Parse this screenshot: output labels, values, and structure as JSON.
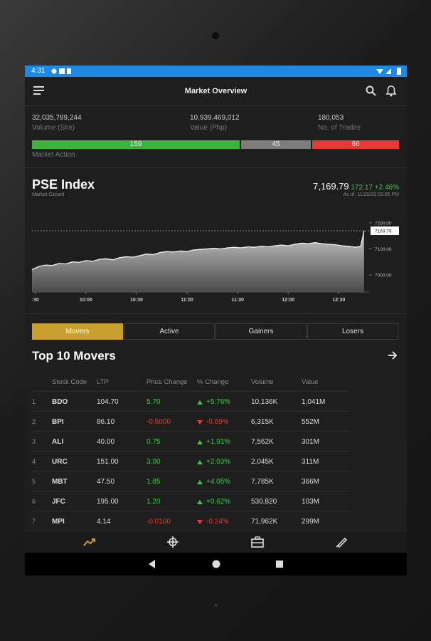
{
  "status": {
    "time": "4:31"
  },
  "header": {
    "title": "Market Overview"
  },
  "stats": [
    {
      "value": "32,035,789,244",
      "label": "Volume (Shs)"
    },
    {
      "value": "10,939,469,012",
      "label": "Value (Php)"
    },
    {
      "value": "180,053",
      "label": "No. of Trades"
    }
  ],
  "market_action": {
    "label": "Market Action",
    "advances": "159",
    "unchanged": "45",
    "declines": "66"
  },
  "index": {
    "name": "PSE Index",
    "state": "Market Closed",
    "value": "7,169.79",
    "change": "172.17",
    "percent": "+2.46%",
    "as_of": "As of: 11/20/20 02:05 PM"
  },
  "chart": {
    "type": "area",
    "xlim": [
      -2,
      198
    ],
    "ylim": [
      6934,
      7230
    ],
    "xticks": [
      {
        "value": 0,
        "label": ":30"
      },
      {
        "value": 30,
        "label": "10:00"
      },
      {
        "value": 60,
        "label": "10:30"
      },
      {
        "value": 90,
        "label": "11:00"
      },
      {
        "value": 120,
        "label": "11:30"
      },
      {
        "value": 150,
        "label": "12:00"
      },
      {
        "value": 180,
        "label": "12:30"
      }
    ],
    "yticks": [
      {
        "value": 7000,
        "label": "7000.00"
      },
      {
        "value": 7100,
        "label": "7100.00"
      },
      {
        "value": 7200,
        "label": "7200.00"
      }
    ],
    "last": {
      "value": 7169.79,
      "label": "7169.79"
    },
    "x": [
      -2,
      2,
      6,
      10,
      14,
      18,
      22,
      26,
      30,
      34,
      38,
      42,
      46,
      50,
      54,
      58,
      62,
      66,
      70,
      74,
      78,
      82,
      86,
      90,
      94,
      98,
      102,
      106,
      110,
      114,
      118,
      122,
      126,
      130,
      134,
      138,
      142,
      146,
      150,
      154,
      158,
      162,
      166,
      170,
      174,
      178,
      182,
      186,
      190,
      193,
      195
    ],
    "values": [
      7020,
      7032,
      7038,
      7036,
      7044,
      7042,
      7050,
      7048,
      7055,
      7052,
      7060,
      7062,
      7058,
      7066,
      7070,
      7068,
      7074,
      7080,
      7078,
      7086,
      7090,
      7088,
      7092,
      7090,
      7096,
      7098,
      7100,
      7102,
      7100,
      7104,
      7106,
      7104,
      7108,
      7106,
      7110,
      7108,
      7112,
      7115,
      7112,
      7118,
      7122,
      7120,
      7124,
      7120,
      7118,
      7116,
      7112,
      7110,
      7106,
      7110,
      7169.79
    ]
  },
  "tabs": [
    "Movers",
    "Active",
    "Gainers",
    "Losers"
  ],
  "section": {
    "title": "Top 10 Movers"
  },
  "table": {
    "columns": [
      "Stock Code",
      "LTP",
      "Price Change",
      "% Change",
      "Volume",
      "Value"
    ],
    "rows": [
      [
        "1",
        "BDO",
        "104.70",
        "5.70",
        "+5.76%",
        "10,136K",
        "1,041M"
      ],
      [
        "2",
        "BPI",
        "86.10",
        "-0.6000",
        "-0.69%",
        "6,315K",
        "552M"
      ],
      [
        "3",
        "ALI",
        "40.00",
        "0.75",
        "+1.91%",
        "7,562K",
        "301M"
      ],
      [
        "4",
        "URC",
        "151.00",
        "3.00",
        "+2.03%",
        "2,045K",
        "311M"
      ],
      [
        "5",
        "MBT",
        "47.50",
        "1.85",
        "+4.05%",
        "7,785K",
        "366M"
      ],
      [
        "6",
        "JFC",
        "195.00",
        "1.20",
        "+0.62%",
        "530,820",
        "103M"
      ],
      [
        "7",
        "MPI",
        "4.14",
        "-0.0100",
        "-0.24%",
        "71,962K",
        "299M"
      ]
    ]
  }
}
